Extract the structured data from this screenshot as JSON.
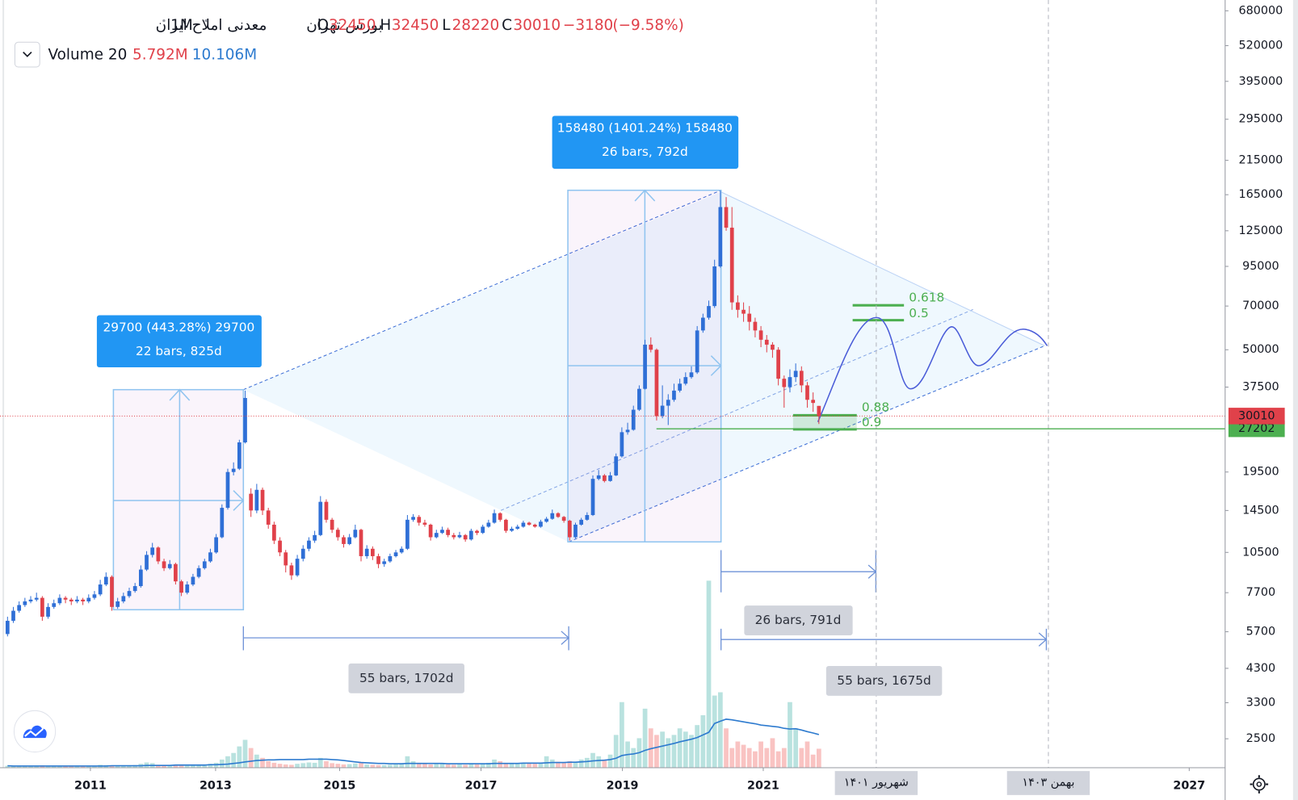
{
  "chart_data": {
    "type": "candlestick",
    "header": {
      "symbol_name": "معدنی املاح ایران",
      "interval": "1M",
      "exchange": "بورس تهران",
      "ohlc_letters": [
        "O",
        "H",
        "L",
        "C"
      ]
    },
    "change": {
      "value": -3180,
      "label": "−3180"
    },
    "change_pct": {
      "value": -9.58,
      "label": "(−9.58%)"
    },
    "log_scale": true,
    "up_color": "#2f6fd6",
    "down_color": "#e0414a",
    "ylim": [
      2000,
      739000
    ],
    "yticks": [
      680000,
      520000,
      395000,
      295000,
      215000,
      165000,
      125000,
      95000,
      70000,
      50000,
      37500,
      19500,
      14500,
      10500,
      7700,
      5700,
      4300,
      3300,
      2500
    ],
    "xlim": [
      -1.3,
      210.1
    ],
    "xticks": [
      {
        "value": 14.3,
        "label": "2011"
      },
      {
        "value": 35.9,
        "label": "2013"
      },
      {
        "value": 57.3,
        "label": "2015"
      },
      {
        "value": 81.7,
        "label": "2017"
      },
      {
        "value": 106.1,
        "label": "2019"
      },
      {
        "value": 130.4,
        "label": "2021"
      },
      {
        "value": 203.9,
        "label": "2027"
      }
    ],
    "date_markers": [
      {
        "value": 149.9,
        "label": "شهریور ۱۴۰۱"
      },
      {
        "value": 179.6,
        "label": "بهمن ۱۴۰۳"
      }
    ],
    "horizontal_line": {
      "value": 27202,
      "color": "#4caf50"
    },
    "candles": [
      [
        5600,
        6400,
        5500,
        6200
      ],
      [
        6200,
        6900,
        6100,
        6700
      ],
      [
        6700,
        7200,
        6600,
        7000
      ],
      [
        7000,
        7400,
        6900,
        7200
      ],
      [
        7200,
        7500,
        7100,
        7300
      ],
      [
        7300,
        7700,
        7200,
        7400
      ],
      [
        7400,
        7500,
        6200,
        6400
      ],
      [
        6400,
        7100,
        6300,
        6900
      ],
      [
        6900,
        7300,
        6800,
        7100
      ],
      [
        7100,
        7600,
        7000,
        7400
      ],
      [
        7400,
        7500,
        7100,
        7300
      ],
      [
        7300,
        7400,
        7000,
        7200
      ],
      [
        7200,
        7500,
        7100,
        7300
      ],
      [
        7300,
        7400,
        7000,
        7200
      ],
      [
        7200,
        7600,
        7100,
        7400
      ],
      [
        7400,
        7800,
        7300,
        7600
      ],
      [
        7600,
        8500,
        7500,
        8200
      ],
      [
        8200,
        9000,
        8100,
        8700
      ],
      [
        8700,
        8800,
        6700,
        6900
      ],
      [
        6900,
        7400,
        6800,
        7200
      ],
      [
        7200,
        7700,
        7100,
        7500
      ],
      [
        7500,
        8000,
        7400,
        7800
      ],
      [
        7800,
        8300,
        7700,
        8100
      ],
      [
        8100,
        9500,
        8000,
        9200
      ],
      [
        9200,
        10600,
        9100,
        10300
      ],
      [
        10300,
        11300,
        10100,
        10900
      ],
      [
        10900,
        11000,
        9600,
        9800
      ],
      [
        9800,
        10000,
        9100,
        9300
      ],
      [
        9300,
        9900,
        9200,
        9600
      ],
      [
        9600,
        9700,
        8200,
        8400
      ],
      [
        8400,
        8500,
        7500,
        7700
      ],
      [
        7700,
        8400,
        7600,
        8200
      ],
      [
        8200,
        8900,
        8100,
        8700
      ],
      [
        8700,
        9500,
        8600,
        9300
      ],
      [
        9300,
        10000,
        9200,
        9800
      ],
      [
        9800,
        10800,
        9700,
        10500
      ],
      [
        10500,
        12100,
        10400,
        11800
      ],
      [
        11800,
        15200,
        11700,
        14800
      ],
      [
        14800,
        20000,
        14600,
        19500
      ],
      [
        19500,
        21000,
        19000,
        20000
      ],
      [
        20000,
        25000,
        19800,
        24500
      ],
      [
        24500,
        36500,
        24300,
        34500
      ],
      [
        16500,
        17200,
        13800,
        14500
      ],
      [
        14500,
        17800,
        14200,
        17000
      ],
      [
        17000,
        17300,
        14000,
        14500
      ],
      [
        14500,
        14800,
        12600,
        13000
      ],
      [
        13000,
        13300,
        11200,
        11500
      ],
      [
        11500,
        11800,
        10200,
        10500
      ],
      [
        10500,
        10700,
        9000,
        9500
      ],
      [
        9500,
        9700,
        8500,
        8800
      ],
      [
        8800,
        10300,
        8700,
        10000
      ],
      [
        10000,
        11100,
        9800,
        10800
      ],
      [
        10800,
        11800,
        10600,
        11500
      ],
      [
        11500,
        12400,
        11300,
        12000
      ],
      [
        12000,
        16200,
        11900,
        15500
      ],
      [
        15500,
        15800,
        13200,
        13500
      ],
      [
        13500,
        13700,
        12200,
        12500
      ],
      [
        12500,
        12700,
        11500,
        11800
      ],
      [
        11800,
        12000,
        10900,
        11200
      ],
      [
        11200,
        12100,
        11100,
        11800
      ],
      [
        11800,
        13000,
        11700,
        12500
      ],
      [
        12500,
        12600,
        9800,
        10200
      ],
      [
        10200,
        11100,
        10000,
        10800
      ],
      [
        10800,
        11000,
        9900,
        10200
      ],
      [
        10200,
        10400,
        9300,
        9600
      ],
      [
        9600,
        10000,
        9400,
        9800
      ],
      [
        9800,
        10400,
        9700,
        10200
      ],
      [
        10200,
        10700,
        10100,
        10500
      ],
      [
        10500,
        11000,
        10400,
        10800
      ],
      [
        10800,
        14000,
        10700,
        13500
      ],
      [
        13500,
        14100,
        13300,
        13800
      ],
      [
        13800,
        14000,
        12900,
        13200
      ],
      [
        13200,
        13500,
        12800,
        13000
      ],
      [
        13000,
        13100,
        11500,
        11800
      ],
      [
        11800,
        12500,
        11700,
        12200
      ],
      [
        12200,
        12800,
        12100,
        12500
      ],
      [
        12500,
        12700,
        11800,
        12000
      ],
      [
        12000,
        12200,
        11600,
        11800
      ],
      [
        11800,
        12300,
        11700,
        12000
      ],
      [
        12000,
        12100,
        11400,
        11600
      ],
      [
        11600,
        12600,
        11500,
        12400
      ],
      [
        12400,
        12500,
        12000,
        12200
      ],
      [
        12200,
        13000,
        12100,
        12800
      ],
      [
        12800,
        13500,
        12700,
        13200
      ],
      [
        13200,
        14600,
        13100,
        14200
      ],
      [
        14200,
        14300,
        13300,
        13500
      ],
      [
        13500,
        13600,
        12200,
        12400
      ],
      [
        12400,
        12800,
        12300,
        12600
      ],
      [
        12600,
        13000,
        12500,
        12800
      ],
      [
        12800,
        13400,
        12700,
        13200
      ],
      [
        13200,
        13300,
        12900,
        13000
      ],
      [
        13000,
        13100,
        12700,
        12800
      ],
      [
        12800,
        13500,
        12700,
        13300
      ],
      [
        13300,
        13800,
        13200,
        13600
      ],
      [
        13600,
        14600,
        13500,
        14200
      ],
      [
        14200,
        14300,
        13700,
        13800
      ],
      [
        13800,
        13900,
        13200,
        13400
      ],
      [
        13400,
        13500,
        11500,
        11800
      ],
      [
        11800,
        13200,
        11700,
        13000
      ],
      [
        13000,
        13700,
        12900,
        13500
      ],
      [
        13500,
        14300,
        13400,
        14000
      ],
      [
        14000,
        19000,
        13900,
        18500
      ],
      [
        18500,
        19800,
        18300,
        19000
      ],
      [
        19000,
        19200,
        18000,
        18200
      ],
      [
        18200,
        19500,
        18100,
        19000
      ],
      [
        19000,
        22500,
        18900,
        22000
      ],
      [
        22000,
        27500,
        21800,
        26500
      ],
      [
        26500,
        28500,
        26000,
        27000
      ],
      [
        27000,
        32500,
        26800,
        31500
      ],
      [
        31500,
        38000,
        31200,
        37000
      ],
      [
        37000,
        54000,
        36800,
        52000
      ],
      [
        52000,
        55000,
        49000,
        50000
      ],
      [
        50000,
        50500,
        29000,
        30000
      ],
      [
        30000,
        38000,
        29500,
        32500
      ],
      [
        32500,
        35500,
        28000,
        34000
      ],
      [
        34000,
        38500,
        33500,
        36500
      ],
      [
        36500,
        40000,
        36000,
        38500
      ],
      [
        38500,
        42000,
        38000,
        40500
      ],
      [
        40500,
        44000,
        40000,
        42000
      ],
      [
        42000,
        60000,
        41500,
        58000
      ],
      [
        58000,
        66000,
        57000,
        64000
      ],
      [
        64000,
        73000,
        63000,
        70000
      ],
      [
        70000,
        100000,
        69000,
        95000
      ],
      [
        95000,
        170000,
        94000,
        150000
      ],
      [
        150000,
        162000,
        125000,
        128000
      ],
      [
        128000,
        150000,
        68000,
        72000
      ],
      [
        72000,
        76000,
        64000,
        68000
      ],
      [
        68000,
        72000,
        62000,
        66000
      ],
      [
        66000,
        70000,
        58000,
        62000
      ],
      [
        62000,
        64000,
        55000,
        58000
      ],
      [
        58000,
        60000,
        51000,
        54000
      ],
      [
        54000,
        56000,
        49000,
        52000
      ],
      [
        52000,
        53000,
        47000,
        50000
      ],
      [
        50000,
        51000,
        38000,
        40000
      ],
      [
        40000,
        41000,
        32000,
        37500
      ],
      [
        37500,
        43000,
        36000,
        40500
      ],
      [
        40500,
        45000,
        39000,
        42500
      ],
      [
        42500,
        44000,
        36000,
        38000
      ],
      [
        38000,
        39000,
        32000,
        34000
      ],
      [
        34000,
        36000,
        31000,
        33190
      ],
      [
        32450,
        32450,
        28220,
        30010
      ]
    ],
    "volume": {
      "name": "Volume 20",
      "lim": [
        0,
        60
      ],
      "up_color": "rgba(38,166,154,0.32)",
      "down_color": "rgba(239,83,80,0.35)",
      "ma_color": "#2e7bcf",
      "last_label": "5.792M",
      "ma_last_label": "10.106M",
      "values": [
        0.6,
        0.4,
        0.5,
        0.4,
        0.5,
        0.6,
        0.7,
        0.5,
        0.4,
        0.5,
        0.4,
        0.5,
        0.5,
        0.4,
        0.5,
        0.6,
        0.9,
        0.8,
        0.7,
        0.5,
        0.5,
        0.6,
        0.8,
        1.2,
        1.6,
        1.4,
        0.9,
        0.7,
        0.6,
        0.8,
        0.7,
        0.6,
        0.7,
        0.8,
        1.0,
        1.2,
        1.5,
        2.5,
        3.5,
        4.5,
        6.5,
        8.5,
        6.0,
        4.0,
        3.0,
        2.0,
        1.5,
        1.2,
        1.0,
        0.9,
        1.2,
        1.4,
        1.6,
        1.5,
        3.0,
        2.0,
        1.4,
        1.2,
        1.0,
        1.1,
        1.3,
        1.5,
        1.0,
        0.9,
        0.8,
        0.8,
        0.9,
        1.0,
        1.2,
        3.5,
        2.0,
        1.5,
        1.2,
        1.0,
        1.1,
        1.2,
        1.0,
        0.9,
        1.0,
        0.9,
        1.1,
        1.0,
        1.2,
        1.5,
        2.5,
        2.0,
        1.4,
        1.2,
        1.2,
        1.5,
        1.3,
        1.2,
        1.6,
        3.5,
        2.5,
        1.8,
        1.6,
        2.0,
        1.8,
        2.5,
        3.0,
        4.5,
        3.5,
        2.5,
        4.0,
        10.0,
        20.0,
        8.0,
        6.0,
        9.0,
        18.0,
        12.0,
        10.0,
        11.0,
        9.0,
        10.0,
        12.0,
        11.0,
        10.0,
        13.0,
        16.0,
        57.0,
        22.0,
        23.0,
        12.0,
        6.0,
        8.0,
        7.0,
        6.0,
        5.0,
        8.0,
        6.0,
        9.0,
        5.0,
        6.0,
        20.0,
        12.0,
        6.0,
        8.0,
        4.0,
        5.792
      ],
      "ma": [
        0.6,
        0.5,
        0.5,
        0.5,
        0.5,
        0.5,
        0.5,
        0.5,
        0.5,
        0.5,
        0.5,
        0.5,
        0.5,
        0.5,
        0.5,
        0.5,
        0.5,
        0.5,
        0.6,
        0.6,
        0.6,
        0.6,
        0.6,
        0.6,
        0.7,
        0.7,
        0.7,
        0.7,
        0.7,
        0.8,
        0.8,
        0.8,
        0.8,
        0.8,
        0.8,
        0.9,
        0.9,
        1.0,
        1.1,
        1.3,
        1.5,
        1.8,
        2.0,
        2.2,
        2.3,
        2.4,
        2.4,
        2.5,
        2.5,
        2.5,
        2.5,
        2.5,
        2.6,
        2.6,
        2.6,
        2.6,
        2.5,
        2.4,
        2.2,
        2.0,
        1.8,
        1.6,
        1.5,
        1.4,
        1.3,
        1.3,
        1.2,
        1.2,
        1.2,
        1.3,
        1.3,
        1.3,
        1.3,
        1.3,
        1.3,
        1.3,
        1.2,
        1.2,
        1.2,
        1.2,
        1.2,
        1.2,
        1.2,
        1.2,
        1.3,
        1.3,
        1.3,
        1.3,
        1.3,
        1.4,
        1.4,
        1.4,
        1.4,
        1.5,
        1.6,
        1.6,
        1.6,
        1.7,
        1.7,
        1.8,
        1.9,
        2.1,
        2.2,
        2.3,
        2.5,
        2.9,
        3.7,
        4.0,
        4.2,
        4.6,
        5.3,
        5.8,
        6.2,
        6.6,
        7.0,
        7.4,
        7.9,
        8.3,
        8.7,
        9.2,
        10.0,
        10.8,
        13.5,
        14.2,
        14.8,
        14.6,
        14.3,
        14.0,
        13.7,
        13.4,
        13.0,
        12.8,
        12.6,
        12.4,
        12.0,
        11.8,
        11.9,
        11.5,
        11.0,
        10.6,
        10.106
      ]
    },
    "annotations": {
      "price_range_1": [
        "29700 (443.28%) 29700",
        "22 bars, 825d"
      ],
      "price_range_2": [
        "158480 (1401.24%) 158480",
        "26 bars, 792d"
      ],
      "date_range_1": "55 bars, 1702d",
      "date_range_2": "26 bars, 791d",
      "date_range_3": "55 bars, 1675d",
      "fib_upper": [
        "0.618",
        "0.5"
      ],
      "fib_lower": [
        "0.88",
        "0.9"
      ]
    }
  }
}
